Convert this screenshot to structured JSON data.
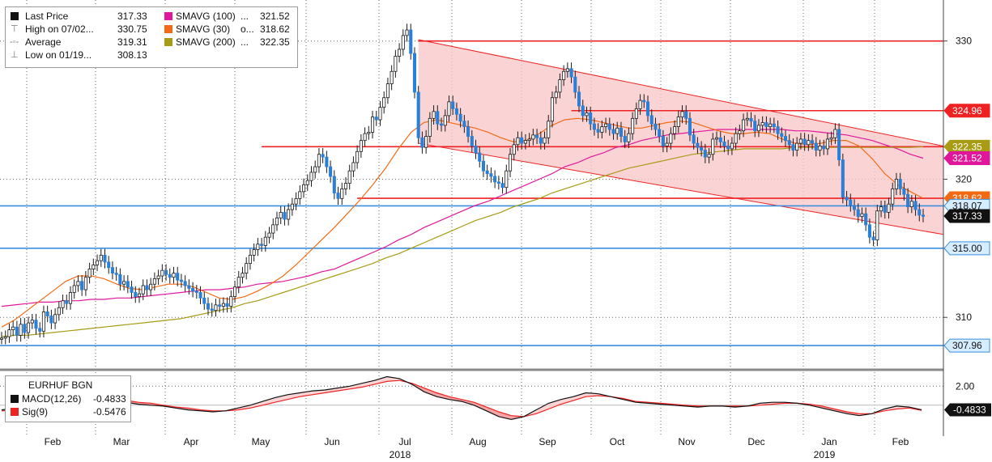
{
  "colors": {
    "last_price_up": "#ffffff",
    "candle_dark": "#1a1a1a",
    "candle_blue": "#2b7fd6",
    "smavg100": "#e0179b",
    "smavg30": "#f46a14",
    "smavg200": "#a79c14",
    "red_line": "#ee2222",
    "blue_line": "#3a8fe0",
    "channel_fill": "#f9c9c9",
    "macd": "#111111",
    "signal": "#ee2222",
    "grid": "#666666"
  },
  "legend": {
    "items": [
      {
        "label": "Last Price",
        "prefix": "",
        "value": "317.33",
        "color": "#111111",
        "icon": "square"
      },
      {
        "label": "High on 07/02...",
        "prefix": "",
        "value": "330.75",
        "color": "",
        "icon": "high-marker-icon"
      },
      {
        "label": "Average",
        "prefix": "",
        "value": "319.31",
        "color": "",
        "icon": "average-marker-icon"
      },
      {
        "label": "Low on 01/19...",
        "prefix": "",
        "value": "308.13",
        "color": "",
        "icon": "low-marker-icon"
      }
    ],
    "sma_items": [
      {
        "label": "SMAVG (100)",
        "prefix": "...",
        "value": "321.52",
        "color": "#e0179b"
      },
      {
        "label": "SMAVG (30)",
        "prefix": "o...",
        "value": "318.62",
        "color": "#f46a14"
      },
      {
        "label": "SMAVG (200)",
        "prefix": "...",
        "value": "322.35",
        "color": "#a79c14"
      }
    ]
  },
  "macd_legend": {
    "title": "EURHUF BGN",
    "items": [
      {
        "label": "MACD(12,26)",
        "value": "-0.4833",
        "color": "#111111"
      },
      {
        "label": "Sig(9)",
        "value": "-0.5476",
        "color": "#ee2222"
      }
    ]
  },
  "price_badges": [
    {
      "value": "324.96",
      "bg": "#ee2222",
      "fg": "#ffffff"
    },
    {
      "value": "322.35",
      "bg": "#a79c14",
      "fg": "#ffffff"
    },
    {
      "value": "321.52",
      "bg": "#e0179b",
      "fg": "#ffffff"
    },
    {
      "value": "318.62",
      "bg": "#f46a14",
      "fg": "#ffffff"
    },
    {
      "value": "318.07",
      "bg": "#d6ecff",
      "fg": "#111111"
    },
    {
      "value": "317.33",
      "bg": "#111111",
      "fg": "#ffffff"
    },
    {
      "value": "315.00",
      "bg": "#d6ecff",
      "fg": "#111111"
    },
    {
      "value": "307.96",
      "bg": "#d6ecff",
      "fg": "#111111"
    }
  ],
  "macd_badge": {
    "value": "-0.4833",
    "bg": "#111111",
    "fg": "#ffffff"
  },
  "chart_data": {
    "type": "line",
    "ylim": [
      306.5,
      332.5
    ],
    "y_ticks": [
      "330",
      "320",
      "310"
    ],
    "y_tick_values": [
      330,
      320,
      310
    ],
    "macd_ticks": [
      "2.00"
    ],
    "macd_tick_values": [
      2.0
    ],
    "macd_ylim": [
      -3.0,
      3.3
    ],
    "x_month_labels": [
      "Feb",
      "Mar",
      "Apr",
      "May",
      "Jun",
      "Jul",
      "Aug",
      "Sep",
      "Oct",
      "Nov",
      "Dec",
      "Jan",
      "Feb"
    ],
    "x_year_labels": [
      {
        "label": "2018",
        "month_index": 5
      },
      {
        "label": "2019",
        "month_index": 11
      }
    ],
    "months_start": "2018-01-22",
    "series": [
      {
        "name": "Last Price",
        "style": "candles",
        "values": [
          308.5,
          308.6,
          309.1,
          309.3,
          308.7,
          309.5,
          308.9,
          309.6,
          309.8,
          309.2,
          309.0,
          310.4,
          310.1,
          309.6,
          310.2,
          310.7,
          311.2,
          311.0,
          311.8,
          312.3,
          312.6,
          312.0,
          312.9,
          313.5,
          313.8,
          314.1,
          314.5,
          314.0,
          313.6,
          313.2,
          313.1,
          312.4,
          312.6,
          312.2,
          311.8,
          311.5,
          311.7,
          312.3,
          312.0,
          312.4,
          312.8,
          313.0,
          313.4,
          313.1,
          312.9,
          313.2,
          312.7,
          312.6,
          312.3,
          312.1,
          311.9,
          311.8,
          311.4,
          311.0,
          310.6,
          310.5,
          310.9,
          310.8,
          311.0,
          310.8,
          311.5,
          312.2,
          312.9,
          313.2,
          313.9,
          314.5,
          314.9,
          315.3,
          315.2,
          315.8,
          316.1,
          316.7,
          317.2,
          317.6,
          317.1,
          317.8,
          318.2,
          318.6,
          319.1,
          319.6,
          319.9,
          320.5,
          320.9,
          321.8,
          321.6,
          320.9,
          320.2,
          319.0,
          318.6,
          319.3,
          319.7,
          320.6,
          321.2,
          322.0,
          322.8,
          323.3,
          323.4,
          324.5,
          324.3,
          325.2,
          325.9,
          326.9,
          327.8,
          328.9,
          329.4,
          330.4,
          330.8,
          329.1,
          326.3,
          323.0,
          322.3,
          323.1,
          324.4,
          324.9,
          324.0,
          323.9,
          324.6,
          325.6,
          325.1,
          324.7,
          324.2,
          323.8,
          323.1,
          322.4,
          321.9,
          321.3,
          320.6,
          320.4,
          320.2,
          319.8,
          319.7,
          319.4,
          320.6,
          321.8,
          322.5,
          323.0,
          322.6,
          322.8,
          322.9,
          323.2,
          323.0,
          322.6,
          323.0,
          324.2,
          325.9,
          326.3,
          327.2,
          327.8,
          328.0,
          327.4,
          326.3,
          325.3,
          324.6,
          324.8,
          324.0,
          323.6,
          323.4,
          323.8,
          324.0,
          323.6,
          323.3,
          323.7,
          323.1,
          322.7,
          323.3,
          324.4,
          325.1,
          325.7,
          325.6,
          324.6,
          324.0,
          323.6,
          323.1,
          322.4,
          322.6,
          323.3,
          323.8,
          324.5,
          324.9,
          324.4,
          323.2,
          322.6,
          322.3,
          322.1,
          321.6,
          321.8,
          322.9,
          323.0,
          322.7,
          322.4,
          322.2,
          322.6,
          323.3,
          323.5,
          324.3,
          324.4,
          324.2,
          323.5,
          323.9,
          324.1,
          323.8,
          324.0,
          323.8,
          323.3,
          323.1,
          322.8,
          322.5,
          322.1,
          322.6,
          322.9,
          322.5,
          322.8,
          322.6,
          322.1,
          322.4,
          322.2,
          322.9,
          323.0,
          323.6,
          321.4,
          318.7,
          318.5,
          318.1,
          317.8,
          317.3,
          317.5,
          316.7,
          315.8,
          315.6,
          317.7,
          318.0,
          317.6,
          318.2,
          319.3,
          320.0,
          319.3,
          318.9,
          318.0,
          318.4,
          317.8,
          317.4,
          317.33
        ],
        "color": "#2b7fd6"
      },
      {
        "name": "SMAVG (100)",
        "style": "line",
        "values": [
          310.8,
          310.9,
          311.0,
          311.1,
          311.1,
          311.2,
          311.2,
          311.3,
          311.3,
          311.4,
          311.4,
          311.5,
          311.6,
          311.7,
          311.8,
          311.9,
          312.0,
          312.0,
          312.1,
          312.2,
          312.4,
          312.5,
          312.6,
          312.8,
          313.0,
          313.3,
          313.5,
          313.9,
          314.3,
          314.7,
          315.1,
          315.6,
          316.0,
          316.5,
          316.9,
          317.3,
          317.7,
          318.1,
          318.4,
          318.8,
          319.2,
          319.6,
          320.0,
          320.4,
          320.9,
          321.2,
          321.6,
          321.9,
          322.3,
          322.5,
          322.8,
          323.0,
          323.2,
          323.3,
          323.4,
          323.5,
          323.6,
          323.6,
          323.6,
          323.6,
          323.6,
          323.6,
          323.5,
          323.5,
          323.4,
          323.3,
          323.2,
          323.0,
          322.8,
          322.5,
          322.2,
          321.8,
          321.52
        ],
        "color": "#e0179b"
      },
      {
        "name": "SMAVG (30)",
        "style": "line",
        "values": [
          309.3,
          309.8,
          310.5,
          311.2,
          311.9,
          312.6,
          313.0,
          313.0,
          312.8,
          312.4,
          312.1,
          312.0,
          312.2,
          312.4,
          312.4,
          312.2,
          311.8,
          311.4,
          311.3,
          311.5,
          311.9,
          312.4,
          313.0,
          313.8,
          314.7,
          315.6,
          316.5,
          317.5,
          318.5,
          319.6,
          320.8,
          322.2,
          323.4,
          324.1,
          324.3,
          324.1,
          323.9,
          323.7,
          323.4,
          323.0,
          322.7,
          322.8,
          323.3,
          323.9,
          324.3,
          324.4,
          324.3,
          324.1,
          323.9,
          323.7,
          323.7,
          323.9,
          324.1,
          324.2,
          324.1,
          323.8,
          323.5,
          323.3,
          323.3,
          323.4,
          323.3,
          322.9,
          322.6,
          322.5,
          322.6,
          322.8,
          322.8,
          322.4,
          321.5,
          320.4,
          319.6,
          319.1,
          318.62
        ],
        "color": "#f46a14"
      },
      {
        "name": "SMAVG (200)",
        "style": "line",
        "values": [
          308.6,
          308.7,
          308.7,
          308.8,
          308.9,
          309.0,
          309.1,
          309.2,
          309.3,
          309.4,
          309.5,
          309.6,
          309.7,
          309.8,
          309.9,
          310.1,
          310.3,
          310.5,
          310.7,
          311.0,
          311.2,
          311.5,
          311.8,
          312.1,
          312.4,
          312.7,
          313.0,
          313.3,
          313.6,
          313.9,
          314.3,
          314.6,
          315.0,
          315.4,
          315.8,
          316.2,
          316.6,
          317.0,
          317.3,
          317.6,
          318.0,
          318.3,
          318.6,
          319.0,
          319.3,
          319.6,
          319.9,
          320.2,
          320.5,
          320.8,
          321.0,
          321.2,
          321.4,
          321.6,
          321.8,
          321.9,
          322.0,
          322.1,
          322.2,
          322.2,
          322.2,
          322.2,
          322.3,
          322.3,
          322.3,
          322.3,
          322.3,
          322.3,
          322.3,
          322.3,
          322.3,
          322.3,
          322.35
        ],
        "color": "#a79c14"
      },
      {
        "name": "MACD(12,26)",
        "style": "line",
        "values": [
          -0.5,
          -0.3,
          -0.1,
          0.2,
          0.5,
          0.7,
          0.9,
          1.0,
          0.9,
          0.6,
          0.3,
          0.1,
          0.0,
          -0.1,
          -0.3,
          -0.5,
          -0.6,
          -0.7,
          -0.6,
          -0.3,
          0.0,
          0.4,
          0.8,
          1.1,
          1.3,
          1.5,
          1.6,
          1.8,
          2.0,
          2.3,
          2.6,
          3.0,
          2.8,
          2.2,
          1.4,
          0.9,
          0.6,
          0.4,
          0.0,
          -0.6,
          -1.2,
          -1.5,
          -1.2,
          -0.5,
          0.2,
          0.6,
          0.9,
          1.3,
          1.2,
          0.9,
          0.6,
          0.3,
          0.2,
          0.1,
          0.0,
          -0.1,
          -0.2,
          -0.1,
          -0.1,
          -0.2,
          -0.1,
          0.2,
          0.3,
          0.3,
          0.2,
          0.0,
          -0.3,
          -0.6,
          -0.9,
          -1.1,
          -0.9,
          -0.4,
          -0.1,
          -0.2,
          -0.4833
        ],
        "color": "#111111"
      },
      {
        "name": "Sig(9)",
        "style": "line",
        "values": [
          -0.6,
          -0.5,
          -0.3,
          -0.1,
          0.2,
          0.4,
          0.6,
          0.8,
          0.8,
          0.7,
          0.5,
          0.3,
          0.2,
          0.0,
          -0.2,
          -0.3,
          -0.5,
          -0.6,
          -0.6,
          -0.5,
          -0.3,
          0.0,
          0.3,
          0.6,
          0.9,
          1.1,
          1.3,
          1.5,
          1.7,
          1.9,
          2.2,
          2.5,
          2.6,
          2.3,
          1.8,
          1.3,
          0.9,
          0.6,
          0.3,
          -0.2,
          -0.7,
          -1.1,
          -1.2,
          -0.9,
          -0.4,
          0.1,
          0.5,
          0.9,
          1.0,
          0.9,
          0.7,
          0.4,
          0.3,
          0.2,
          0.1,
          0.0,
          -0.1,
          -0.1,
          -0.1,
          -0.1,
          -0.1,
          0.0,
          0.1,
          0.2,
          0.2,
          0.1,
          -0.1,
          -0.4,
          -0.7,
          -0.9,
          -0.9,
          -0.6,
          -0.4,
          -0.3,
          -0.5476
        ],
        "color": "#ee2222"
      }
    ],
    "horizontal_levels": [
      {
        "value": 330.0,
        "color": "#ee2222",
        "start_index": 109
      },
      {
        "value": 324.96,
        "color": "#ee2222",
        "start_index": 149
      },
      {
        "value": 322.35,
        "color": "#ee2222",
        "start_index": 68
      },
      {
        "value": 318.62,
        "color": "#ee2222",
        "start_index": 93
      },
      {
        "value": 318.07,
        "color": "#3a8fe0",
        "start_index": 0
      },
      {
        "value": 315.0,
        "color": "#3a8fe0",
        "start_index": 0
      },
      {
        "value": 307.96,
        "color": "#3a8fe0",
        "start_index": 0
      }
    ],
    "channel": {
      "upper_start": 330.1,
      "upper_end": 322.4,
      "lower_start": 322.6,
      "lower_end": 316.0,
      "start_index": 109
    },
    "grid": true,
    "legend_position": "top-left"
  }
}
